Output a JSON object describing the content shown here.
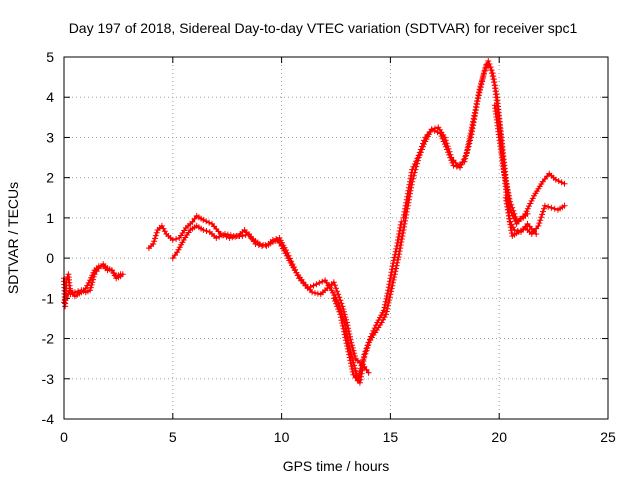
{
  "chart_data": {
    "type": "scatter",
    "title": "Day 197 of 2018, Sidereal Day-to-day VTEC variation (SDTVAR) for receiver spc1",
    "xlabel": "GPS time / hours",
    "ylabel": "SDTVAR / TECUs",
    "xlim": [
      0,
      25
    ],
    "ylim": [
      -4,
      5
    ],
    "xticks": [
      0,
      5,
      10,
      15,
      20,
      25
    ],
    "yticks": [
      -4,
      -3,
      -2,
      -1,
      0,
      1,
      2,
      3,
      4,
      5
    ],
    "grid": true,
    "marker": "+",
    "color": "#ff0000",
    "series": [
      {
        "segments": [
          [
            [
              0.0,
              -0.5
            ],
            [
              0.05,
              -1.2
            ],
            [
              0.1,
              -0.6
            ],
            [
              0.2,
              -0.4
            ],
            [
              0.3,
              -0.9
            ],
            [
              0.5,
              -0.85
            ],
            [
              0.8,
              -0.8
            ],
            [
              1.0,
              -0.85
            ],
            [
              1.2,
              -0.8
            ],
            [
              1.4,
              -0.4
            ],
            [
              1.6,
              -0.25
            ],
            [
              1.8,
              -0.15
            ],
            [
              2.0,
              -0.25
            ],
            [
              2.2,
              -0.3
            ],
            [
              2.4,
              -0.5
            ],
            [
              2.6,
              -0.45
            ],
            [
              2.7,
              -0.4
            ]
          ],
          [
            [
              0.0,
              -1.1
            ],
            [
              0.1,
              -0.95
            ],
            [
              0.3,
              -0.8
            ],
            [
              0.5,
              -0.95
            ],
            [
              0.8,
              -0.85
            ],
            [
              1.0,
              -0.75
            ],
            [
              1.2,
              -0.55
            ],
            [
              1.4,
              -0.3
            ],
            [
              1.6,
              -0.2
            ],
            [
              1.8,
              -0.2
            ],
            [
              2.0,
              -0.3
            ],
            [
              2.2,
              -0.3
            ],
            [
              2.4,
              -0.45
            ],
            [
              2.6,
              -0.4
            ]
          ],
          [
            [
              3.9,
              0.25
            ],
            [
              4.1,
              0.35
            ],
            [
              4.3,
              0.7
            ],
            [
              4.5,
              0.8
            ],
            [
              4.7,
              0.6
            ],
            [
              5.0,
              0.45
            ],
            [
              5.3,
              0.5
            ],
            [
              5.6,
              0.75
            ],
            [
              5.9,
              0.9
            ],
            [
              6.1,
              1.05
            ],
            [
              6.4,
              0.95
            ],
            [
              6.8,
              0.85
            ],
            [
              7.2,
              0.6
            ],
            [
              7.6,
              0.5
            ],
            [
              8.0,
              0.55
            ],
            [
              8.3,
              0.7
            ],
            [
              8.6,
              0.5
            ],
            [
              9.0,
              0.35
            ],
            [
              9.3,
              0.3
            ],
            [
              9.6,
              0.4
            ],
            [
              9.8,
              0.45
            ],
            [
              10.0,
              0.3
            ],
            [
              10.3,
              0.0
            ],
            [
              10.6,
              -0.3
            ],
            [
              11.0,
              -0.6
            ],
            [
              11.4,
              -0.85
            ],
            [
              11.8,
              -0.9
            ],
            [
              12.1,
              -0.75
            ],
            [
              12.4,
              -0.6
            ],
            [
              12.6,
              -0.9
            ],
            [
              12.8,
              -1.2
            ],
            [
              13.0,
              -1.6
            ],
            [
              13.2,
              -2.1
            ],
            [
              13.4,
              -2.5
            ],
            [
              13.6,
              -2.6
            ],
            [
              13.8,
              -2.7
            ],
            [
              14.0,
              -2.85
            ]
          ],
          [
            [
              5.0,
              0.0
            ],
            [
              5.2,
              0.15
            ],
            [
              5.5,
              0.45
            ],
            [
              5.8,
              0.7
            ],
            [
              6.1,
              0.8
            ],
            [
              6.4,
              0.7
            ],
            [
              6.7,
              0.65
            ],
            [
              7.0,
              0.5
            ],
            [
              7.4,
              0.6
            ],
            [
              7.8,
              0.55
            ],
            [
              8.2,
              0.55
            ],
            [
              8.5,
              0.6
            ],
            [
              8.8,
              0.35
            ],
            [
              9.1,
              0.3
            ],
            [
              9.4,
              0.35
            ],
            [
              9.6,
              0.45
            ],
            [
              9.9,
              0.5
            ],
            [
              10.2,
              0.2
            ],
            [
              10.5,
              -0.15
            ],
            [
              10.8,
              -0.5
            ],
            [
              11.2,
              -0.75
            ],
            [
              11.6,
              -0.65
            ],
            [
              12.0,
              -0.55
            ],
            [
              12.3,
              -0.8
            ],
            [
              12.6,
              -1.1
            ],
            [
              12.9,
              -1.6
            ],
            [
              13.1,
              -2.2
            ],
            [
              13.3,
              -2.6
            ],
            [
              13.5,
              -3.0
            ],
            [
              13.6,
              -3.1
            ],
            [
              13.7,
              -2.8
            ],
            [
              13.8,
              -2.4
            ],
            [
              14.0,
              -2.1
            ],
            [
              14.3,
              -1.85
            ],
            [
              14.6,
              -1.6
            ],
            [
              14.8,
              -1.4
            ],
            [
              15.0,
              -0.9
            ],
            [
              15.2,
              -0.4
            ],
            [
              15.4,
              0.1
            ],
            [
              15.6,
              0.7
            ],
            [
              15.8,
              1.3
            ],
            [
              16.0,
              1.9
            ],
            [
              16.3,
              2.5
            ],
            [
              16.6,
              2.9
            ],
            [
              16.9,
              3.2
            ],
            [
              17.2,
              3.25
            ],
            [
              17.5,
              3.0
            ],
            [
              17.8,
              2.5
            ],
            [
              18.1,
              2.3
            ],
            [
              18.4,
              2.4
            ],
            [
              18.7,
              3.0
            ],
            [
              19.0,
              3.9
            ],
            [
              19.3,
              4.6
            ],
            [
              19.5,
              4.9
            ],
            [
              19.7,
              4.6
            ],
            [
              19.9,
              4.0
            ],
            [
              20.1,
              3.0
            ],
            [
              20.3,
              2.0
            ],
            [
              20.5,
              1.2
            ],
            [
              20.8,
              0.85
            ],
            [
              21.2,
              1.1
            ],
            [
              21.6,
              1.55
            ],
            [
              22.0,
              1.9
            ],
            [
              22.3,
              2.1
            ],
            [
              22.6,
              1.95
            ],
            [
              23.0,
              1.85
            ]
          ],
          [
            [
              12.4,
              -1.0
            ],
            [
              12.7,
              -1.4
            ],
            [
              12.9,
              -1.9
            ],
            [
              13.1,
              -2.4
            ],
            [
              13.3,
              -2.9
            ],
            [
              13.5,
              -3.05
            ],
            [
              13.7,
              -2.6
            ],
            [
              13.9,
              -2.3
            ],
            [
              14.1,
              -1.95
            ],
            [
              14.4,
              -1.6
            ],
            [
              14.7,
              -1.3
            ],
            [
              14.9,
              -0.8
            ],
            [
              15.1,
              -0.2
            ],
            [
              15.3,
              0.3
            ],
            [
              15.5,
              0.9
            ]
          ],
          [
            [
              15.6,
              1.0
            ],
            [
              15.8,
              1.6
            ],
            [
              16.0,
              2.2
            ],
            [
              16.3,
              2.55
            ],
            [
              16.6,
              3.0
            ],
            [
              16.9,
              3.2
            ],
            [
              17.3,
              3.1
            ],
            [
              17.6,
              2.7
            ],
            [
              17.9,
              2.3
            ],
            [
              18.2,
              2.25
            ],
            [
              18.5,
              2.6
            ],
            [
              18.8,
              3.4
            ],
            [
              19.1,
              4.2
            ],
            [
              19.4,
              4.8
            ],
            [
              19.6,
              4.75
            ],
            [
              19.8,
              4.3
            ],
            [
              20.0,
              3.4
            ],
            [
              20.2,
              2.3
            ],
            [
              20.4,
              1.2
            ],
            [
              20.6,
              0.55
            ],
            [
              20.9,
              0.65
            ],
            [
              21.2,
              0.75
            ],
            [
              21.5,
              0.6
            ],
            [
              21.8,
              0.8
            ],
            [
              22.1,
              1.3
            ],
            [
              22.4,
              1.25
            ],
            [
              22.7,
              1.2
            ],
            [
              23.0,
              1.3
            ]
          ],
          [
            [
              19.8,
              3.8
            ],
            [
              20.0,
              3.0
            ],
            [
              20.2,
              2.2
            ],
            [
              20.5,
              1.4
            ],
            [
              20.8,
              0.95
            ],
            [
              21.1,
              1.0
            ],
            [
              21.3,
              1.1
            ]
          ],
          [
            [
              20.3,
              1.5
            ],
            [
              20.5,
              0.9
            ],
            [
              20.7,
              0.7
            ],
            [
              21.0,
              0.65
            ],
            [
              21.3,
              0.85
            ],
            [
              21.7,
              0.6
            ]
          ]
        ]
      }
    ]
  }
}
